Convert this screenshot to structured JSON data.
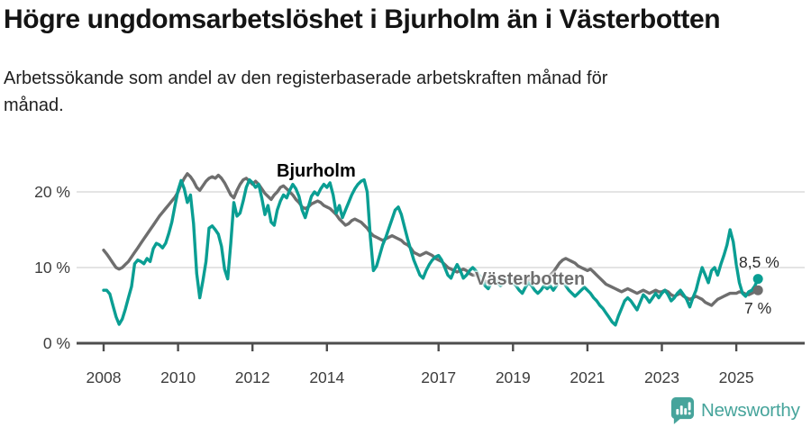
{
  "footer": {
    "brand": "Newsworthy",
    "brand_color": "#46a49b",
    "logo_icon": "newsworthy-badge-bar-chart-icon"
  },
  "colors": {
    "bjurholm": "#0a9e93",
    "vasterbotten": "#6e6e6e",
    "axis": "#4d4d4d",
    "grid": "#dcdcdc",
    "axis_text": "#3d3d3d"
  },
  "chart_data": {
    "type": "line",
    "title": "Högre ungdomsarbetslöshet i Bjurholm än i Västerbotten",
    "subtitle_lines": [
      "Arbetssökande som andel av den registerbaserade arbetskraften månad för",
      "månad."
    ],
    "x_interval": "monthly",
    "x_start": "2008-01",
    "x_end": "2025-08",
    "xticks": [
      {
        "year": 2008,
        "label": "2008"
      },
      {
        "year": 2010,
        "label": "2010"
      },
      {
        "year": 2012,
        "label": "2012"
      },
      {
        "year": 2014,
        "label": "2014"
      },
      {
        "year": 2017,
        "label": "2017"
      },
      {
        "year": 2019,
        "label": "2019"
      },
      {
        "year": 2021,
        "label": "2021"
      },
      {
        "year": 2023,
        "label": "2023"
      },
      {
        "year": 2025,
        "label": "2025"
      }
    ],
    "yticks": [
      {
        "value": 0,
        "label": "0 %"
      },
      {
        "value": 10,
        "label": "10 %"
      },
      {
        "value": 20,
        "label": "20 %"
      }
    ],
    "ylim": [
      0,
      24
    ],
    "grid": "horizontal",
    "legend_position": "inline-labels",
    "series": [
      {
        "name": "Bjurholm",
        "label_inline": "Bjurholm",
        "color": "#0a9e93",
        "end_label": "8,5 %",
        "end_value": 8.5,
        "values": [
          7.0,
          7.0,
          6.5,
          5.0,
          3.5,
          2.5,
          3.2,
          4.5,
          6.0,
          7.5,
          10.5,
          11.0,
          10.8,
          10.5,
          11.2,
          10.8,
          12.5,
          13.2,
          13.0,
          12.6,
          13.2,
          14.5,
          16.0,
          18.2,
          20.2,
          21.5,
          20.4,
          18.6,
          19.6,
          15.8,
          9.2,
          6.0,
          8.2,
          10.8,
          15.2,
          15.5,
          15.0,
          14.4,
          12.8,
          9.8,
          8.5,
          13.2,
          18.6,
          16.8,
          17.2,
          18.8,
          20.6,
          21.6,
          21.2,
          20.6,
          21.0,
          19.2,
          17.0,
          18.2,
          16.0,
          15.6,
          17.6,
          18.8,
          19.6,
          19.2,
          20.2,
          21.0,
          20.4,
          19.4,
          17.6,
          16.6,
          18.0,
          19.4,
          20.0,
          19.6,
          20.4,
          21.0,
          20.6,
          21.2,
          19.6,
          17.2,
          18.2,
          16.6,
          17.6,
          18.6,
          19.6,
          20.4,
          21.0,
          21.4,
          21.6,
          20.0,
          14.0,
          9.6,
          10.2,
          11.6,
          13.0,
          14.0,
          15.2,
          16.4,
          17.6,
          18.0,
          17.0,
          15.4,
          13.8,
          12.4,
          11.0,
          10.0,
          9.0,
          8.6,
          9.6,
          10.4,
          11.0,
          11.4,
          11.6,
          11.0,
          10.0,
          9.0,
          8.6,
          9.6,
          10.4,
          9.6,
          8.6,
          9.0,
          9.6,
          10.0,
          9.6,
          9.0,
          8.6,
          7.6,
          7.2,
          8.0,
          8.6,
          8.0,
          7.6,
          8.0,
          8.4,
          8.0,
          8.0,
          7.6,
          7.0,
          6.6,
          7.4,
          8.0,
          7.6,
          7.0,
          6.6,
          7.0,
          7.6,
          7.2,
          7.6,
          7.0,
          7.6,
          8.6,
          8.2,
          7.6,
          7.0,
          6.6,
          6.2,
          6.6,
          7.0,
          7.4,
          7.0,
          6.6,
          6.0,
          5.6,
          5.0,
          4.6,
          4.0,
          3.4,
          2.8,
          2.4,
          3.6,
          4.6,
          5.6,
          6.0,
          5.6,
          5.0,
          4.4,
          5.4,
          6.4,
          6.0,
          5.4,
          6.0,
          6.6,
          6.0,
          6.6,
          7.0,
          6.4,
          5.6,
          6.0,
          6.6,
          7.0,
          6.4,
          5.8,
          4.8,
          6.0,
          7.0,
          8.6,
          10.0,
          9.0,
          8.0,
          9.6,
          10.0,
          9.0,
          10.4,
          11.6,
          13.0,
          15.0,
          13.4,
          10.4,
          8.0,
          6.6,
          6.2,
          6.8,
          7.0,
          7.6,
          8.5
        ]
      },
      {
        "name": "Västerbotten",
        "label_inline": "Västerbotten",
        "color": "#6e6e6e",
        "end_label": "7 %",
        "end_value": 7.0,
        "values": [
          12.3,
          11.8,
          11.2,
          10.6,
          10.0,
          9.8,
          10.0,
          10.4,
          10.8,
          11.4,
          12.0,
          12.6,
          13.2,
          13.8,
          14.4,
          15.0,
          15.6,
          16.2,
          16.8,
          17.3,
          17.8,
          18.3,
          18.8,
          19.3,
          20.0,
          21.0,
          21.8,
          22.4,
          22.0,
          21.4,
          20.6,
          20.2,
          20.8,
          21.4,
          21.8,
          22.0,
          21.8,
          22.2,
          21.8,
          21.2,
          20.4,
          19.6,
          19.2,
          20.2,
          21.0,
          21.6,
          21.8,
          21.4,
          21.0,
          21.4,
          21.0,
          20.4,
          19.8,
          19.4,
          19.0,
          19.6,
          20.0,
          20.6,
          20.8,
          20.4,
          20.0,
          19.6,
          19.0,
          18.6,
          18.0,
          17.8,
          18.0,
          18.4,
          18.6,
          18.8,
          18.6,
          18.2,
          18.0,
          17.8,
          17.4,
          17.0,
          16.4,
          16.0,
          15.6,
          15.8,
          16.2,
          16.4,
          16.2,
          16.0,
          15.6,
          15.2,
          14.6,
          14.2,
          14.0,
          13.8,
          13.6,
          13.8,
          14.0,
          14.2,
          14.0,
          13.8,
          13.6,
          13.2,
          13.0,
          12.6,
          12.0,
          11.8,
          11.6,
          11.8,
          12.0,
          11.8,
          11.6,
          11.2,
          11.0,
          10.8,
          10.4,
          10.0,
          9.8,
          9.6,
          9.4,
          9.6,
          9.8,
          9.6,
          9.2,
          9.0,
          9.0,
          8.8,
          8.6,
          8.2,
          8.0,
          8.2,
          8.4,
          8.2,
          8.0,
          8.2,
          8.4,
          8.6,
          8.6,
          8.4,
          8.2,
          8.0,
          8.2,
          8.4,
          8.6,
          8.4,
          8.2,
          8.4,
          8.6,
          8.8,
          9.0,
          9.4,
          10.0,
          10.6,
          11.0,
          11.2,
          11.0,
          10.8,
          10.6,
          10.2,
          10.0,
          9.8,
          9.6,
          9.8,
          9.4,
          9.0,
          8.6,
          8.2,
          7.8,
          7.6,
          7.4,
          7.2,
          7.0,
          6.8,
          7.0,
          7.2,
          7.0,
          6.8,
          6.6,
          6.8,
          7.0,
          6.8,
          6.6,
          6.8,
          7.0,
          6.8,
          6.8,
          7.0,
          6.8,
          6.4,
          6.2,
          6.4,
          6.6,
          6.2,
          6.0,
          5.8,
          6.0,
          6.2,
          6.0,
          5.8,
          5.4,
          5.2,
          5.0,
          5.4,
          5.8,
          6.0,
          6.2,
          6.4,
          6.6,
          6.6,
          6.6,
          6.8,
          6.7,
          6.5,
          6.4,
          6.6,
          6.8,
          7.0
        ]
      }
    ]
  }
}
